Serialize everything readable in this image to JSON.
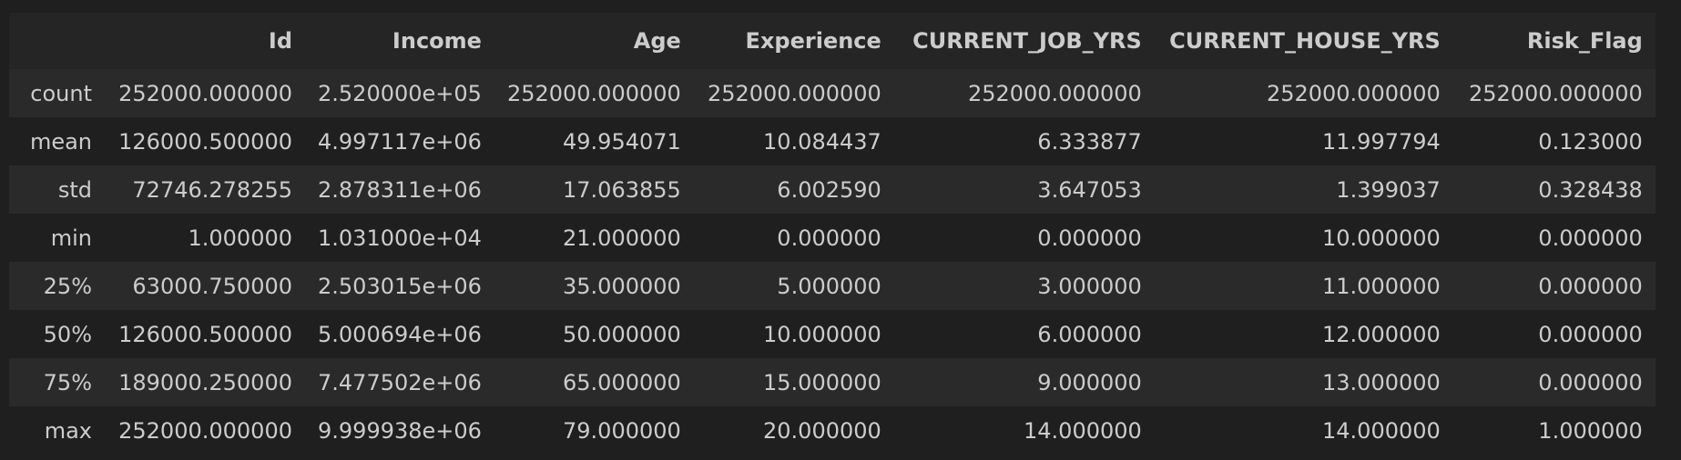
{
  "table": {
    "index_header": "",
    "columns": [
      "Id",
      "Income",
      "Age",
      "Experience",
      "CURRENT_JOB_YRS",
      "CURRENT_HOUSE_YRS",
      "Risk_Flag"
    ],
    "rows": [
      {
        "label": "count",
        "values": [
          "252000.000000",
          "2.520000e+05",
          "252000.000000",
          "252000.000000",
          "252000.000000",
          "252000.000000",
          "252000.000000"
        ]
      },
      {
        "label": "mean",
        "values": [
          "126000.500000",
          "4.997117e+06",
          "49.954071",
          "10.084437",
          "6.333877",
          "11.997794",
          "0.123000"
        ]
      },
      {
        "label": "std",
        "values": [
          "72746.278255",
          "2.878311e+06",
          "17.063855",
          "6.002590",
          "3.647053",
          "1.399037",
          "0.328438"
        ]
      },
      {
        "label": "min",
        "values": [
          "1.000000",
          "1.031000e+04",
          "21.000000",
          "0.000000",
          "0.000000",
          "10.000000",
          "0.000000"
        ]
      },
      {
        "label": "25%",
        "values": [
          "63000.750000",
          "2.503015e+06",
          "35.000000",
          "5.000000",
          "3.000000",
          "11.000000",
          "0.000000"
        ]
      },
      {
        "label": "50%",
        "values": [
          "126000.500000",
          "5.000694e+06",
          "50.000000",
          "10.000000",
          "6.000000",
          "12.000000",
          "0.000000"
        ]
      },
      {
        "label": "75%",
        "values": [
          "189000.250000",
          "7.477502e+06",
          "65.000000",
          "15.000000",
          "9.000000",
          "13.000000",
          "0.000000"
        ]
      },
      {
        "label": "max",
        "values": [
          "252000.000000",
          "9.999938e+06",
          "79.000000",
          "20.000000",
          "14.000000",
          "14.000000",
          "1.000000"
        ]
      }
    ]
  }
}
